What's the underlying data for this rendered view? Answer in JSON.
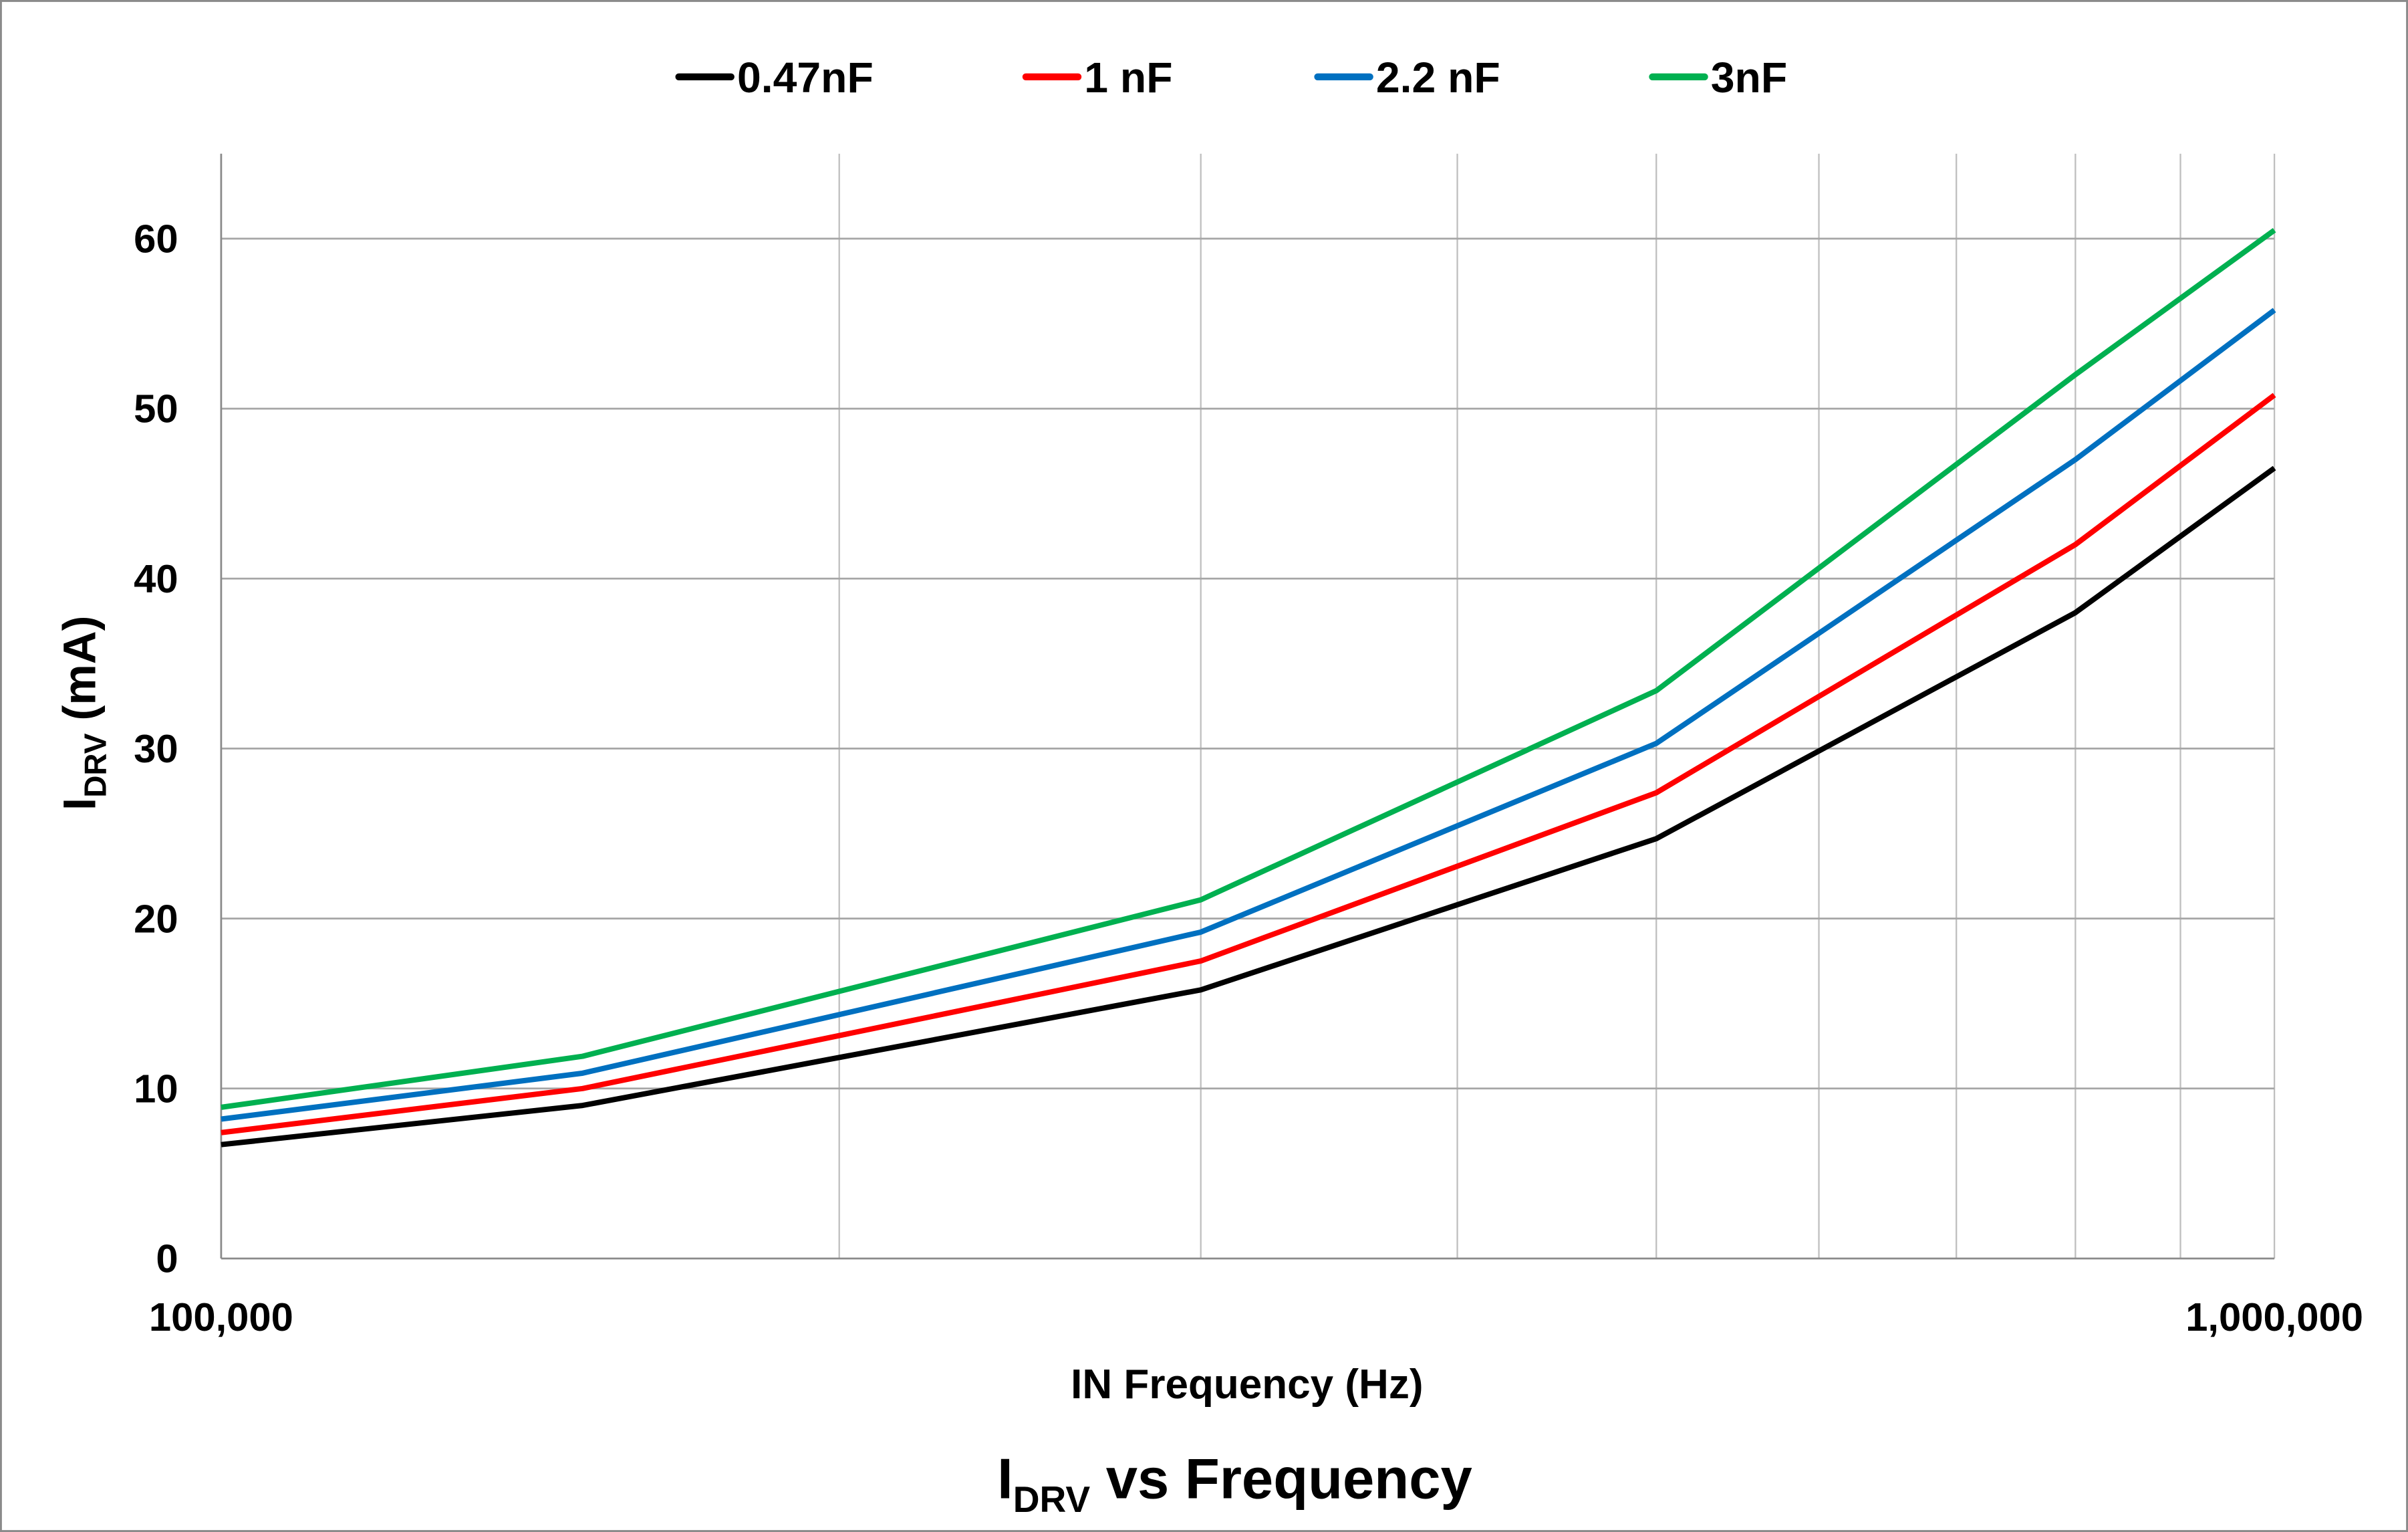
{
  "chart_data": {
    "type": "line",
    "title": {
      "main": "I",
      "sub": "DRV",
      "rest": " vs Frequency"
    },
    "xlabel": "IN Frequency (Hz)",
    "ylabel": {
      "main": "I",
      "sub": "DRV",
      "rest": " (mA)"
    },
    "xscale": "log",
    "xlim": [
      100000,
      1000000
    ],
    "ylim": [
      0,
      65
    ],
    "x_ticks": [
      100000,
      1000000
    ],
    "x_tick_labels": [
      "100,000",
      "1,000,000"
    ],
    "y_ticks": [
      0,
      10,
      20,
      30,
      40,
      50,
      60
    ],
    "y_tick_labels": [
      "0",
      "10",
      "20",
      "30",
      "40",
      "50",
      "60"
    ],
    "grid": true,
    "legend_position": "top",
    "x": [
      100000,
      150000,
      300000,
      500000,
      800000,
      1000000
    ],
    "series": [
      {
        "name": "0.47nF",
        "color": "#000000",
        "values": [
          6.7,
          9.0,
          15.8,
          24.7,
          38.0,
          46.5
        ]
      },
      {
        "name": "1 nF",
        "color": "#FF0000",
        "values": [
          7.4,
          10.0,
          17.5,
          27.4,
          42.0,
          50.8
        ]
      },
      {
        "name": "2.2 nF",
        "color": "#0070C0",
        "values": [
          8.2,
          10.9,
          19.2,
          30.3,
          47.0,
          55.8
        ]
      },
      {
        "name": "3nF",
        "color": "#00B050",
        "values": [
          8.9,
          11.9,
          21.1,
          33.4,
          52.0,
          60.5
        ]
      }
    ]
  }
}
